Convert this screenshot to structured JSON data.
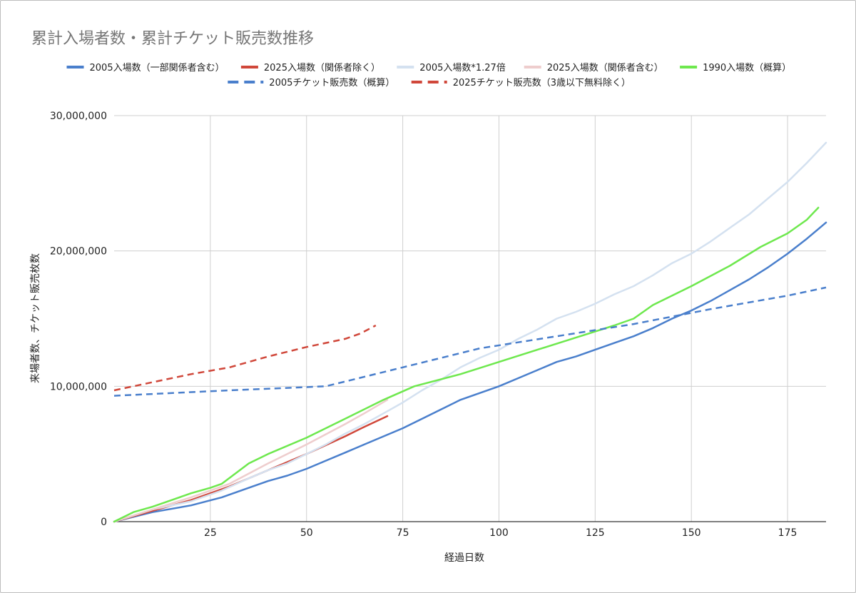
{
  "chart_data": {
    "type": "line",
    "title": "累計入場者数・累計チケット販売数推移",
    "xlabel": "経過日数",
    "ylabel": "来場者数、チケット販売枚数",
    "xlim": [
      0,
      185
    ],
    "ylim": [
      0,
      30000000
    ],
    "x_ticks": [
      25,
      50,
      75,
      100,
      125,
      150,
      175
    ],
    "y_ticks": [
      0,
      10000000,
      20000000,
      30000000
    ],
    "y_tick_labels": [
      "0",
      "10,000,000",
      "20,000,000",
      "30,000,000"
    ],
    "grid": true,
    "legend_position": "top",
    "series": [
      {
        "name": "2005入場数（一部関係者含む）",
        "color": "#4a7fcc",
        "dash": "solid",
        "x": [
          0,
          10,
          20,
          28,
          35,
          40,
          45,
          50,
          55,
          60,
          65,
          70,
          75,
          80,
          85,
          90,
          95,
          100,
          105,
          110,
          115,
          120,
          125,
          130,
          135,
          140,
          145,
          150,
          155,
          160,
          165,
          170,
          175,
          180,
          185
        ],
        "y": [
          0,
          700000,
          1200000,
          1800000,
          2500000,
          3000000,
          3400000,
          3900000,
          4500000,
          5100000,
          5700000,
          6300000,
          6900000,
          7600000,
          8300000,
          9000000,
          9500000,
          10000000,
          10600000,
          11200000,
          11800000,
          12200000,
          12700000,
          13200000,
          13700000,
          14300000,
          15000000,
          15600000,
          16300000,
          17100000,
          17900000,
          18800000,
          19800000,
          20900000,
          22100000
        ]
      },
      {
        "name": "2025入場数（関係者除く）",
        "color": "#d0473a",
        "dash": "solid",
        "x": [
          0,
          10,
          20,
          30,
          40,
          50,
          60,
          65,
          71
        ],
        "y": [
          0,
          800000,
          1600000,
          2600000,
          3800000,
          5000000,
          6300000,
          7000000,
          7800000
        ]
      },
      {
        "name": "2005入場数*1.27倍",
        "color": "#d4e1f0",
        "dash": "solid",
        "x": [
          0,
          10,
          20,
          28,
          35,
          40,
          45,
          50,
          55,
          60,
          65,
          70,
          75,
          80,
          85,
          90,
          95,
          100,
          105,
          110,
          115,
          120,
          125,
          130,
          135,
          140,
          145,
          150,
          155,
          160,
          165,
          170,
          175,
          180,
          185
        ],
        "y": [
          0,
          900000,
          1500000,
          2300000,
          3200000,
          3800000,
          4300000,
          5000000,
          5700000,
          6500000,
          7200000,
          8000000,
          8800000,
          9700000,
          10500000,
          11400000,
          12100000,
          12700000,
          13500000,
          14200000,
          15000000,
          15500000,
          16100000,
          16800000,
          17400000,
          18200000,
          19100000,
          19800000,
          20700000,
          21700000,
          22700000,
          23900000,
          25100000,
          26500000,
          28000000
        ]
      },
      {
        "name": "2025入場数（関係者含む）",
        "color": "#eecdcd",
        "dash": "solid",
        "x": [
          0,
          10,
          20,
          30,
          40,
          50,
          60,
          65,
          71
        ],
        "y": [
          0,
          900000,
          1800000,
          2800000,
          4300000,
          5700000,
          7200000,
          8000000,
          9000000
        ]
      },
      {
        "name": "1990入場数（概算）",
        "color": "#6ee84e",
        "dash": "solid",
        "x": [
          0,
          5,
          10,
          15,
          20,
          25,
          28,
          35,
          40,
          50,
          60,
          70,
          78,
          90,
          100,
          110,
          120,
          130,
          135,
          140,
          150,
          160,
          168,
          175,
          180,
          183
        ],
        "y": [
          0,
          700000,
          1100000,
          1600000,
          2100000,
          2500000,
          2800000,
          4300000,
          5000000,
          6200000,
          7600000,
          9000000,
          10000000,
          10900000,
          11800000,
          12700000,
          13600000,
          14500000,
          15000000,
          16000000,
          17400000,
          18900000,
          20300000,
          21300000,
          22300000,
          23200000
        ]
      },
      {
        "name": "2005チケット販売数（概算）",
        "color": "#4a7fcc",
        "dash": "dashed",
        "x": [
          0,
          30,
          55,
          75,
          95,
          115,
          135,
          155,
          175,
          185
        ],
        "y": [
          9300000,
          9700000,
          10000000,
          11400000,
          12800000,
          13700000,
          14600000,
          15700000,
          16700000,
          17300000
        ]
      },
      {
        "name": "2025チケット販売数（3歳以下無料除く）",
        "color": "#d0473a",
        "dash": "dashed",
        "x": [
          0,
          10,
          20,
          30,
          40,
          50,
          60,
          64,
          68
        ],
        "y": [
          9700000,
          10300000,
          10900000,
          11400000,
          12200000,
          12900000,
          13500000,
          13900000,
          14500000
        ]
      }
    ]
  }
}
